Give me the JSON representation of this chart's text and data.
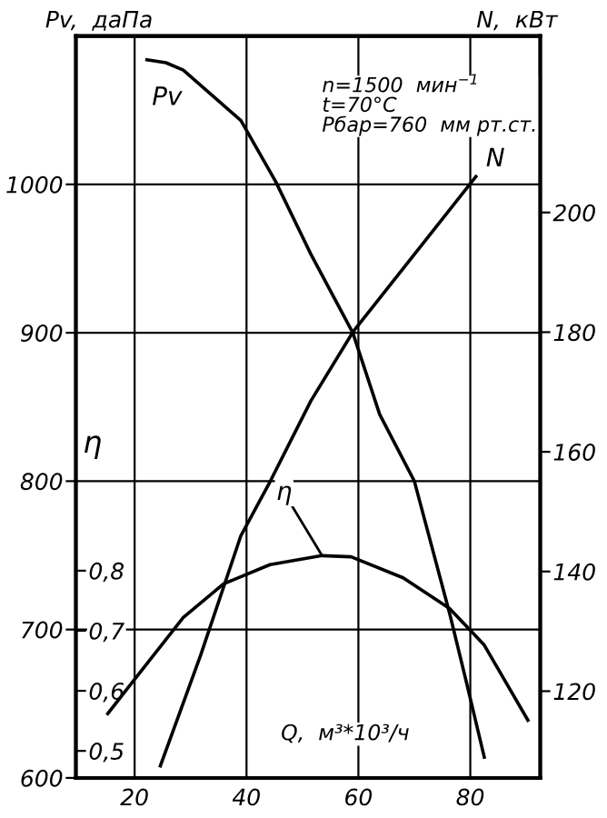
{
  "chart_data": {
    "type": "line",
    "xlabel": "Q,  м³*10³/ч",
    "ylabel": "Pv,  даПа",
    "y2label": "N,  кВт",
    "y3label": "η",
    "annotations": [
      "n=1500  мин$^{−1}$",
      "t=70°C",
      "Pбар=760  мм рт.ст."
    ],
    "xlim": [
      9.5,
      92.5
    ],
    "xticks": [
      20,
      40,
      60,
      80
    ],
    "ylim": [
      600,
      1100
    ],
    "yticks": [
      600,
      700,
      800,
      900,
      1000
    ],
    "y2lim": [
      105.5,
      229.5
    ],
    "y2ticks": [
      120,
      140,
      160,
      180,
      200
    ],
    "y3lim": [
      0.455,
      1.69
    ],
    "y3ticks": [
      {
        "value": 0.5,
        "label": "0,5"
      },
      {
        "value": 0.6,
        "label": "0,6"
      },
      {
        "value": 0.7,
        "label": "0,7"
      },
      {
        "value": 0.8,
        "label": "0,8"
      }
    ],
    "grid": true,
    "line_style": "solid",
    "marker": "none",
    "series": [
      {
        "name": "Pv",
        "color": "#000000",
        "x": [
          22.2,
          25.6,
          28.7,
          39,
          45.2,
          51.5,
          59,
          63.8,
          70,
          76.3,
          79.4,
          82.5
        ],
        "values": [
          1084,
          1082,
          1077,
          1043,
          1002,
          953,
          900,
          845,
          800,
          711,
          663,
          614
        ]
      },
      {
        "name": "N",
        "color": "#000000",
        "axis": "y2",
        "x": [
          24.6,
          31.8,
          39,
          44.2,
          51.5,
          59,
          70,
          81
        ],
        "values": [
          107.5,
          126,
          146,
          155,
          168.5,
          180,
          193,
          206
        ]
      },
      {
        "name": "η",
        "color": "#000000",
        "axis": "y3",
        "x": [
          15.2,
          19.4,
          28.7,
          35.9,
          44.2,
          53.5,
          58.7,
          68,
          76.3,
          82.5,
          90.3
        ],
        "values": [
          0.562,
          0.612,
          0.722,
          0.778,
          0.81,
          0.825,
          0.823,
          0.788,
          0.737,
          0.676,
          0.551
        ]
      }
    ]
  }
}
